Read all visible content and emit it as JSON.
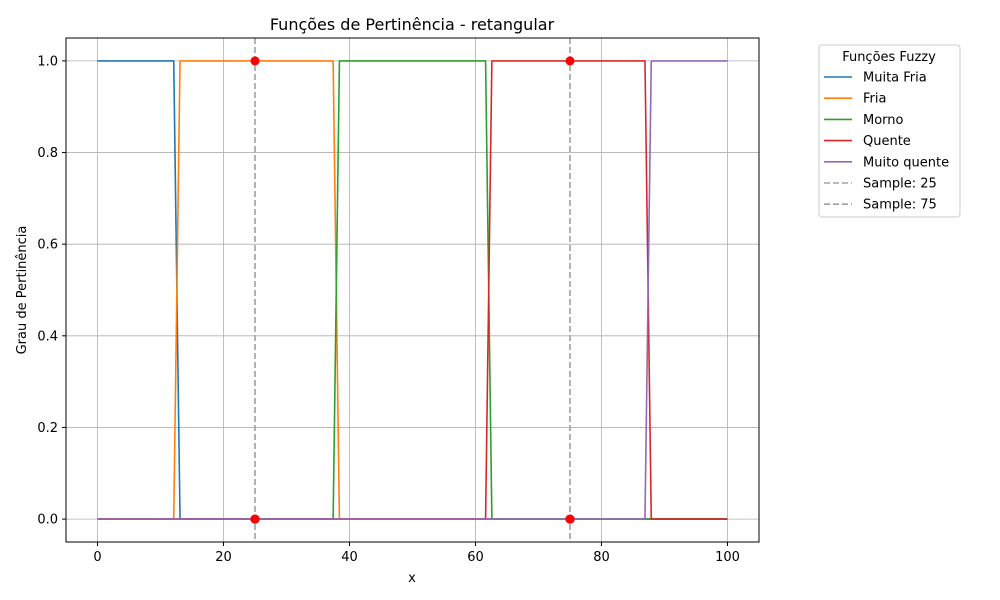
{
  "chart_data": {
    "type": "line",
    "title": "Funções de Pertinência - retangular",
    "xlabel": "x",
    "ylabel": "Grau de Pertinência",
    "xlim": [
      -5,
      105
    ],
    "ylim": [
      -0.05,
      1.05
    ],
    "xticks": [
      0,
      20,
      40,
      60,
      80,
      100
    ],
    "yticks": [
      0.0,
      0.2,
      0.4,
      0.6,
      0.8,
      1.0
    ],
    "xtick_labels": [
      "0",
      "20",
      "40",
      "60",
      "80",
      "100"
    ],
    "ytick_labels": [
      "0.0",
      "0.2",
      "0.4",
      "0.6",
      "0.8",
      "1.0"
    ],
    "grid": true,
    "legend_title": "Funções Fuzzy",
    "legend_position": "outside-right",
    "series": [
      {
        "name": "Muita Fria",
        "color": "#1f77b4",
        "x": [
          0,
          12.1,
          13.1,
          100
        ],
        "y": [
          1,
          1,
          0,
          0
        ]
      },
      {
        "name": "Fria",
        "color": "#ff7f0e",
        "x": [
          0,
          12.1,
          13.1,
          37.4,
          38.4,
          100
        ],
        "y": [
          0,
          0,
          1,
          1,
          0,
          0
        ]
      },
      {
        "name": "Morno",
        "color": "#2ca02c",
        "x": [
          0,
          37.4,
          38.4,
          61.6,
          62.6,
          100
        ],
        "y": [
          0,
          0,
          1,
          1,
          0,
          0
        ]
      },
      {
        "name": "Quente",
        "color": "#d62728",
        "x": [
          0,
          61.6,
          62.6,
          86.9,
          87.9,
          100
        ],
        "y": [
          0,
          0,
          1,
          1,
          0,
          0
        ]
      },
      {
        "name": "Muito quente",
        "color": "#9467bd",
        "x": [
          0,
          86.9,
          87.9,
          100
        ],
        "y": [
          0,
          0,
          1,
          1
        ]
      }
    ],
    "vlines": [
      {
        "name": "Sample: 25",
        "x": 25,
        "color": "#a0a0a0"
      },
      {
        "name": "Sample: 75",
        "x": 75,
        "color": "#a0a0a0"
      }
    ],
    "markers": {
      "color": "#ff0000",
      "points": [
        {
          "x": 25,
          "y": 1
        },
        {
          "x": 25,
          "y": 0
        },
        {
          "x": 25,
          "y": 0
        },
        {
          "x": 25,
          "y": 0
        },
        {
          "x": 25,
          "y": 0
        },
        {
          "x": 75,
          "y": 1
        },
        {
          "x": 75,
          "y": 0
        },
        {
          "x": 75,
          "y": 0
        },
        {
          "x": 75,
          "y": 0
        },
        {
          "x": 75,
          "y": 0
        }
      ]
    }
  }
}
